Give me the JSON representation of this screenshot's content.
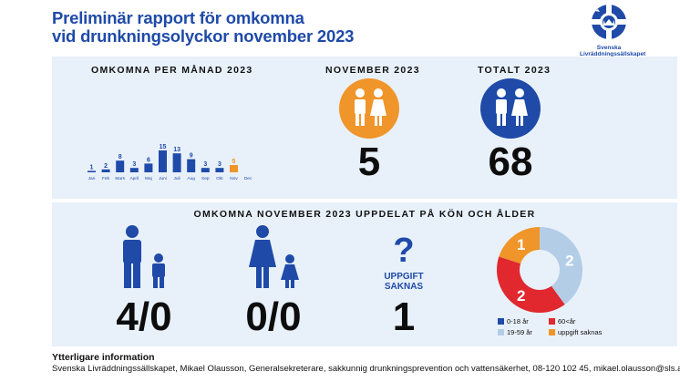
{
  "header": {
    "title_line1": "Preliminär rapport för omkomna",
    "title_line2": "vid drunkningsolyckor november 2023",
    "logo_text_line1": "Svenska",
    "logo_text_line2": "Livräddningssällskapet"
  },
  "monthly": {
    "heading": "OMKOMNA PER MÅNAD 2023",
    "months": [
      "Jan",
      "Feb",
      "Mars",
      "April",
      "Maj",
      "Juni",
      "Juli",
      "Aug",
      "Sep",
      "Okt",
      "Nov",
      "Dec"
    ],
    "values": [
      1,
      2,
      8,
      3,
      6,
      15,
      13,
      9,
      3,
      3,
      5,
      null
    ],
    "labels": [
      "1",
      "2",
      "8",
      "3",
      "6",
      "15",
      "13",
      "9",
      "3",
      "3",
      "5",
      ""
    ],
    "bar_color": "#1f4aa8",
    "highlight_color": "#f0952a"
  },
  "november": {
    "heading": "NOVEMBER 2023",
    "value": "5",
    "color": "#f0952a"
  },
  "total": {
    "heading": "TOTALT 2023",
    "value": "68",
    "color": "#1f4aa8"
  },
  "breakdown": {
    "heading": "OMKOMNA NOVEMBER 2023 UPPDELAT PÅ KÖN OCH ÅLDER",
    "men": "4/0",
    "women": "0/0",
    "unknown_label_line1": "UPPGIFT",
    "unknown_label_line2": "SAKNAS",
    "unknown_value": "1",
    "question_mark": "?"
  },
  "chart_data": {
    "type": "pie",
    "categories": [
      "0-18 år",
      "60<år",
      "19-59 år",
      "uppgift saknas"
    ],
    "values": [
      0,
      2,
      2,
      1
    ],
    "labels": [
      "",
      "2",
      "2",
      "1"
    ],
    "colors": [
      "#1f4aa8",
      "#e0282e",
      "#b3cde6",
      "#f0952a"
    ],
    "legend": "bottom"
  },
  "legend": {
    "item1": "0-18 år",
    "item2": "60<år",
    "item3": "19-59 år",
    "item4": "uppgift saknas"
  },
  "footer": {
    "title": "Ytterligare information",
    "text": "Svenska Livräddningssällskapet, Mikael Olausson, Generalsekreterare, sakkunnig drunkningsprevention och vattensäkerhet, 08-120 102 45, mikael.olausson@sls.a.se"
  }
}
